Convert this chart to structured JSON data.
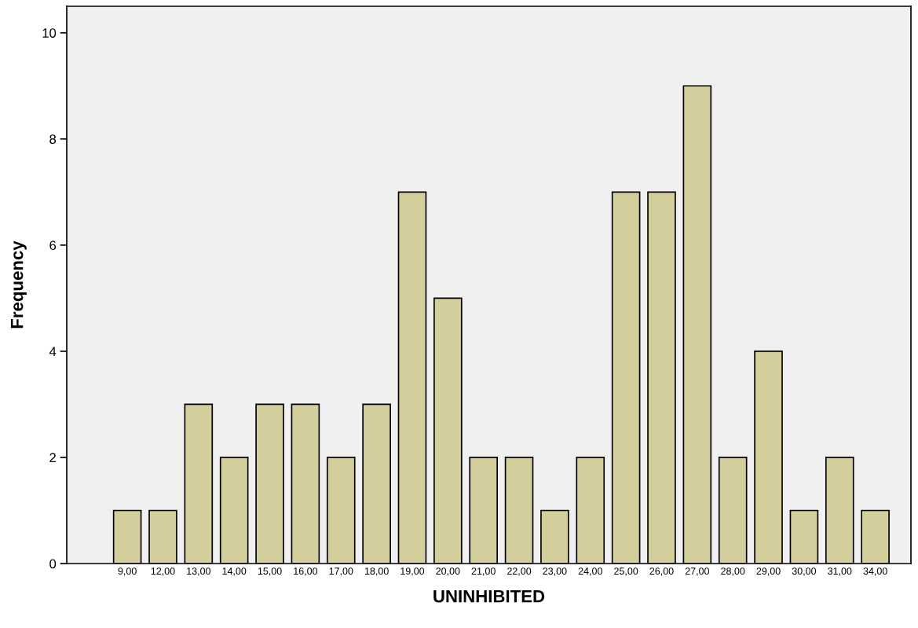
{
  "chart_data": {
    "type": "bar",
    "xlabel": "UNINHIBITED",
    "ylabel": "Frequency",
    "categories": [
      "9,00",
      "12,00",
      "13,00",
      "14,00",
      "15,00",
      "16,00",
      "17,00",
      "18,00",
      "19,00",
      "20,00",
      "21,00",
      "22,00",
      "23,00",
      "24,00",
      "25,00",
      "26,00",
      "27,00",
      "28,00",
      "29,00",
      "30,00",
      "31,00",
      "34,00"
    ],
    "values": [
      1,
      1,
      3,
      2,
      3,
      3,
      2,
      3,
      7,
      5,
      2,
      2,
      1,
      2,
      7,
      7,
      9,
      2,
      4,
      1,
      2,
      1
    ],
    "color": "#d3ce9b",
    "ylim": [
      0,
      10.5
    ],
    "yticks": [
      0,
      2,
      4,
      6,
      8,
      10
    ],
    "grid": false
  }
}
